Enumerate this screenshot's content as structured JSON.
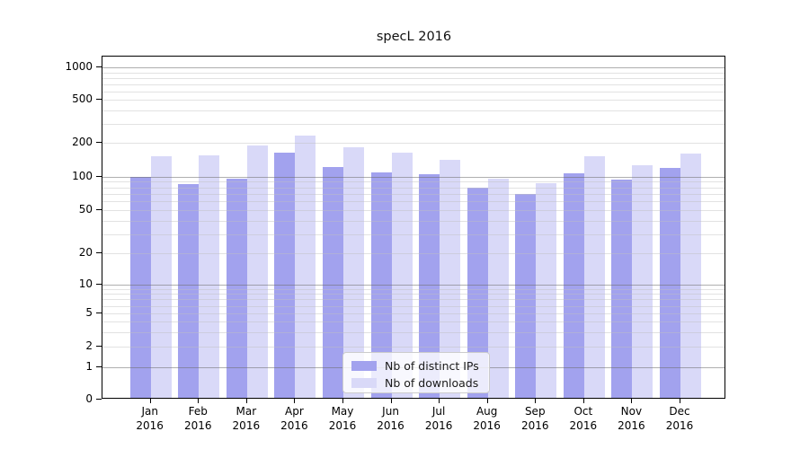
{
  "chart_data": {
    "type": "bar",
    "title": "specL 2016",
    "categories": [
      "Jan 2016",
      "Feb 2016",
      "Mar 2016",
      "Apr 2016",
      "May 2016",
      "Jun 2016",
      "Jul 2016",
      "Aug 2016",
      "Sep 2016",
      "Oct 2016",
      "Nov 2016",
      "Dec 2016"
    ],
    "series": [
      {
        "name": "Nb of distinct IPs",
        "color": "#a2a2ee",
        "values": [
          100,
          86,
          95,
          165,
          122,
          110,
          105,
          79,
          70,
          108,
          94,
          119
        ]
      },
      {
        "name": "Nb of downloads",
        "color": "#d9d9f8",
        "values": [
          153,
          154,
          190,
          233,
          185,
          165,
          141,
          95,
          87,
          151,
          127,
          162
        ]
      }
    ],
    "xlabel": "",
    "ylabel": "",
    "y_scale": "symlog",
    "y_tick_labels": [
      "0",
      "1",
      "2",
      "5",
      "10",
      "20",
      "50",
      "100",
      "200",
      "500",
      "1000"
    ],
    "y_ticks": [
      0,
      1,
      2,
      5,
      10,
      20,
      50,
      100,
      200,
      500,
      1000
    ],
    "ylim": [
      0,
      1250
    ],
    "grid": true,
    "legend_position": "lower center"
  }
}
